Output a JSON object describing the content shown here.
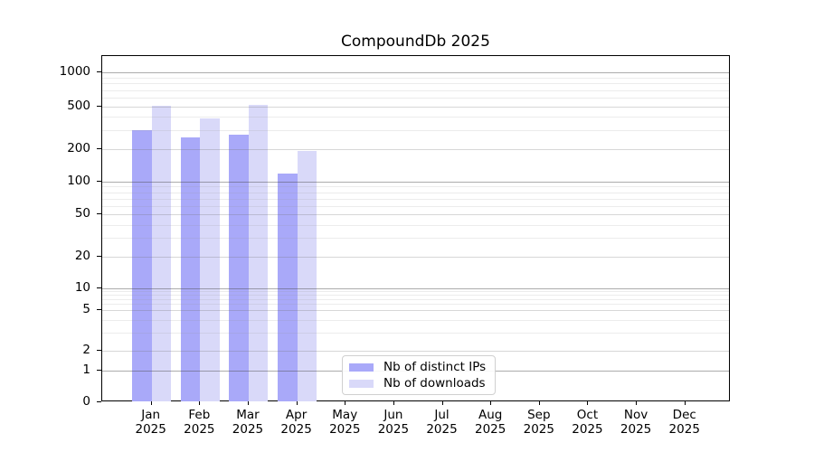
{
  "chart_data": {
    "type": "bar",
    "title": "CompoundDb 2025",
    "x_tick_months": [
      "Jan",
      "Feb",
      "Mar",
      "Apr",
      "May",
      "Jun",
      "Jul",
      "Aug",
      "Sep",
      "Oct",
      "Nov",
      "Dec"
    ],
    "x_tick_year": "2025",
    "categories": [
      "Jan 2025",
      "Feb 2025",
      "Mar 2025",
      "Apr 2025",
      "May 2025",
      "Jun 2025",
      "Jul 2025",
      "Aug 2025",
      "Sep 2025",
      "Oct 2025",
      "Nov 2025",
      "Dec 2025"
    ],
    "series": [
      {
        "name": "Nb of distinct IPs",
        "color": "#a9a9f9",
        "values": [
          300,
          260,
          275,
          120,
          0,
          0,
          0,
          0,
          0,
          0,
          0,
          0
        ]
      },
      {
        "name": "Nb of downloads",
        "color": "#d9d9f9",
        "values": [
          505,
          390,
          515,
          195,
          0,
          0,
          0,
          0,
          0,
          0,
          0,
          0
        ]
      }
    ],
    "yscale": "symlog",
    "yticks": [
      0,
      1,
      2,
      5,
      10,
      20,
      50,
      100,
      200,
      500,
      1000
    ],
    "ytick_labels": [
      "0",
      "1",
      "2",
      "5",
      "10",
      "20",
      "50",
      "100",
      "200",
      "500",
      "1000"
    ],
    "grid": true,
    "legend_position": "lower-center-inside",
    "colors": {
      "major_gridline": "#b0b0b0",
      "mid_gridline": "#d2d2d2",
      "minor_gridline": "#e7e7e7",
      "spine": "#000000"
    }
  }
}
